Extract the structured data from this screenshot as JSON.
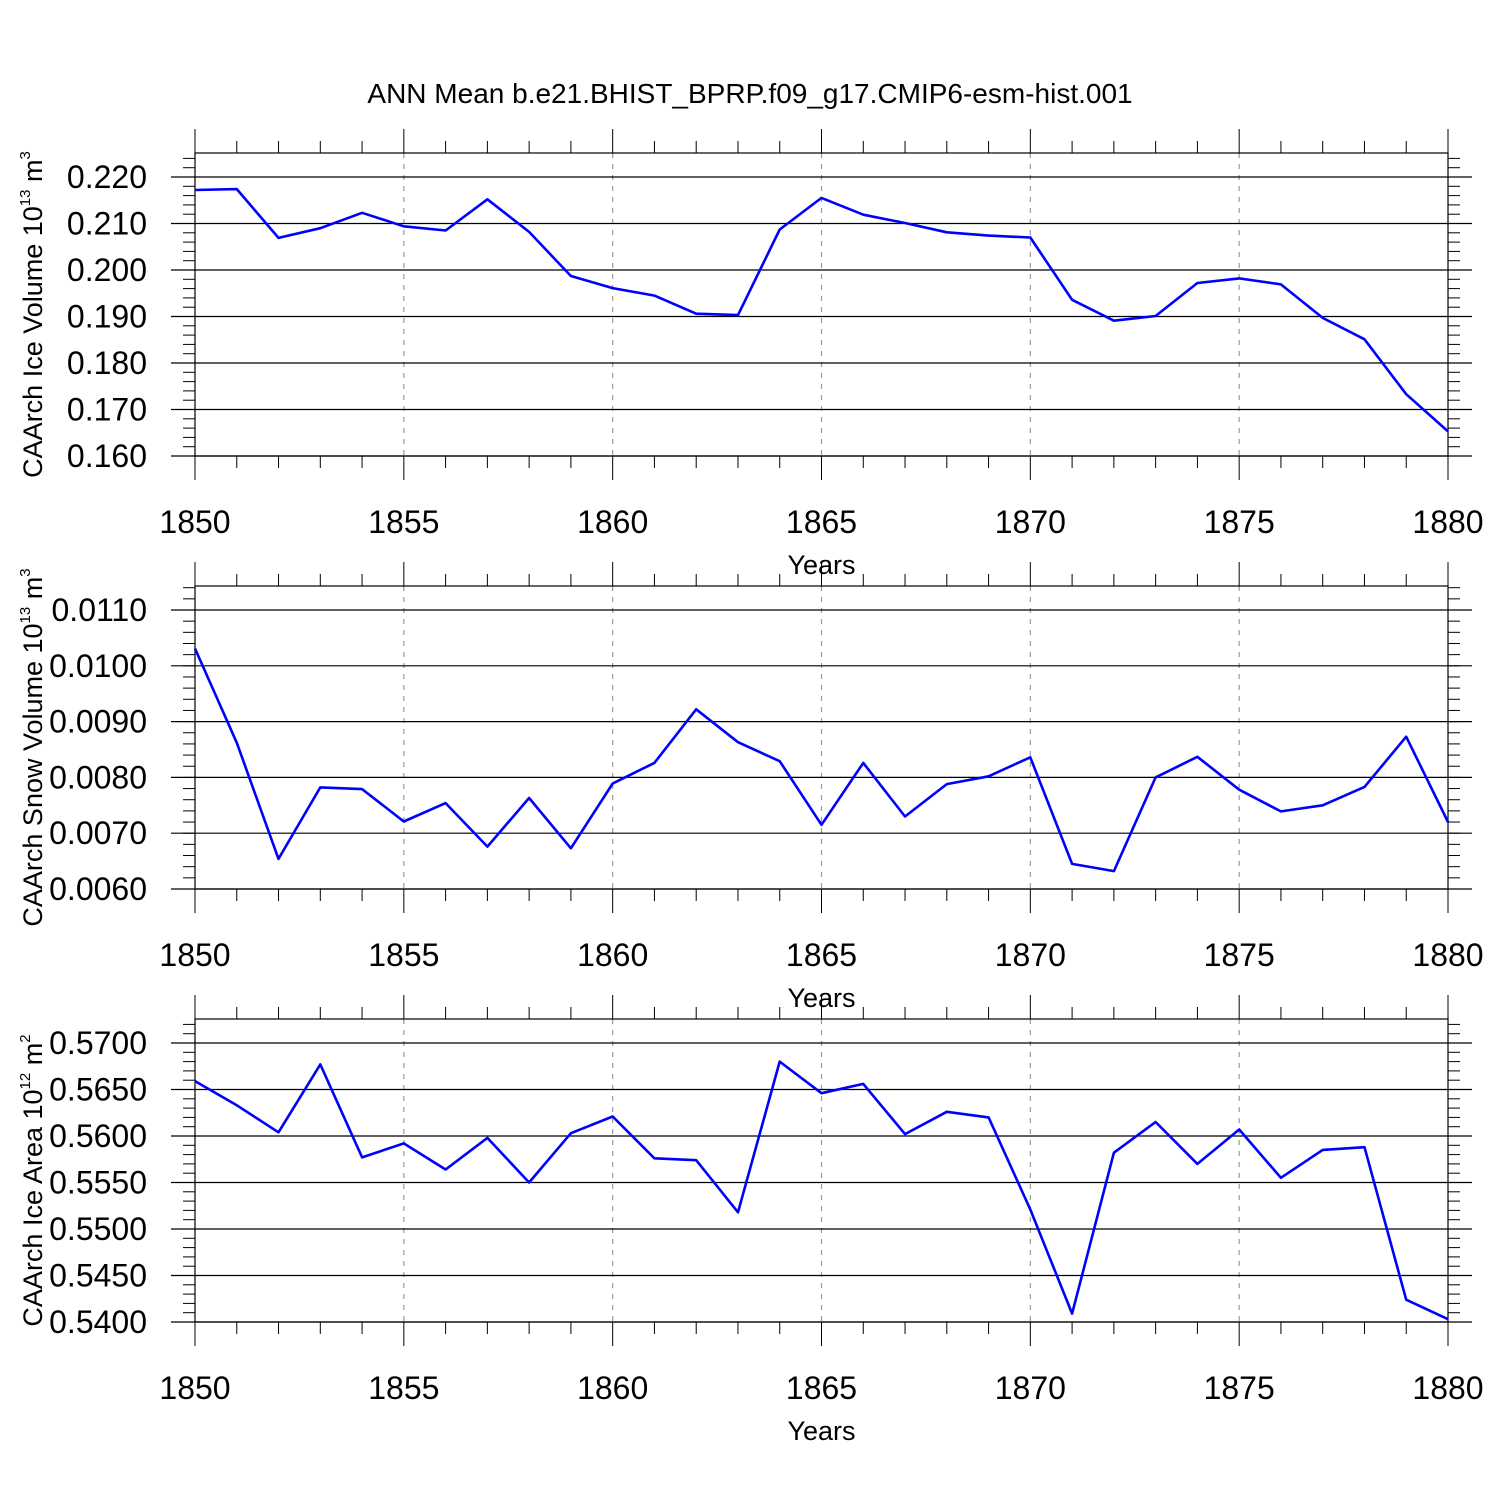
{
  "title": "ANN Mean b.e21.BHIST_BPRP.f09_g17.CMIP6-esm-hist.001",
  "colors": {
    "line": "#0000ff",
    "grid": "#999999",
    "axis": "#000000"
  },
  "chart_data": [
    {
      "type": "line",
      "ylabel_main": "CAArch Ice Volume 10",
      "ylabel_exp": "13",
      "ylabel_unit": " m",
      "ylabel_unit_exp": "3",
      "xlabel": "Years",
      "xlim": [
        1850,
        1880
      ],
      "ylim": [
        0.16,
        0.22
      ],
      "x_ticks": [
        1850,
        1855,
        1860,
        1865,
        1870,
        1875,
        1880
      ],
      "x_tick_labels": [
        "1850",
        "1855",
        "1860",
        "1865",
        "1870",
        "1875",
        "1880"
      ],
      "y_ticks": [
        0.16,
        0.17,
        0.18,
        0.19,
        0.2,
        0.21,
        0.22
      ],
      "y_tick_labels": [
        "0.160",
        "0.170",
        "0.180",
        "0.190",
        "0.200",
        "0.210",
        "0.220"
      ],
      "y_minor_step": 0.002,
      "grid": "vertical dashed at major x ticks",
      "x": [
        1850,
        1851,
        1852,
        1853,
        1854,
        1855,
        1856,
        1857,
        1858,
        1859,
        1860,
        1861,
        1862,
        1863,
        1864,
        1865,
        1866,
        1867,
        1868,
        1869,
        1870,
        1871,
        1872,
        1873,
        1874,
        1875,
        1876,
        1877,
        1878,
        1879,
        1880
      ],
      "values": [
        0.2172,
        0.2174,
        0.2069,
        0.209,
        0.2123,
        0.2094,
        0.2085,
        0.2152,
        0.2082,
        0.1987,
        0.1961,
        0.1945,
        0.1906,
        0.1903,
        0.2087,
        0.2155,
        0.2119,
        0.2101,
        0.2081,
        0.2074,
        0.207,
        0.1936,
        0.1891,
        0.1901,
        0.1972,
        0.1982,
        0.1969,
        0.1897,
        0.1851,
        0.1733,
        0.1653
      ]
    },
    {
      "type": "line",
      "ylabel_main": "CAArch Snow Volume 10",
      "ylabel_exp": "13",
      "ylabel_unit": " m",
      "ylabel_unit_exp": "3",
      "xlabel": "Years",
      "xlim": [
        1850,
        1880
      ],
      "ylim": [
        0.006,
        0.011
      ],
      "x_ticks": [
        1850,
        1855,
        1860,
        1865,
        1870,
        1875,
        1880
      ],
      "x_tick_labels": [
        "1850",
        "1855",
        "1860",
        "1865",
        "1870",
        "1875",
        "1880"
      ],
      "y_ticks": [
        0.006,
        0.007,
        0.008,
        0.009,
        0.01,
        0.011
      ],
      "y_tick_labels": [
        "0.0060",
        "0.0070",
        "0.0080",
        "0.0090",
        "0.0100",
        "0.0110"
      ],
      "y_minor_step": 0.0002,
      "grid": "vertical dashed at major x ticks",
      "x": [
        1850,
        1851,
        1852,
        1853,
        1854,
        1855,
        1856,
        1857,
        1858,
        1859,
        1860,
        1861,
        1862,
        1863,
        1864,
        1865,
        1866,
        1867,
        1868,
        1869,
        1870,
        1871,
        1872,
        1873,
        1874,
        1875,
        1876,
        1877,
        1878,
        1879,
        1880
      ],
      "values": [
        0.01031,
        0.00862,
        0.00654,
        0.00782,
        0.00779,
        0.00721,
        0.00754,
        0.00676,
        0.00763,
        0.00673,
        0.00789,
        0.00826,
        0.00922,
        0.00863,
        0.00829,
        0.00715,
        0.00826,
        0.0073,
        0.00788,
        0.00802,
        0.00836,
        0.00645,
        0.00632,
        0.008,
        0.00837,
        0.00778,
        0.00739,
        0.0075,
        0.00783,
        0.00873,
        0.0072
      ]
    },
    {
      "type": "line",
      "ylabel_main": "CAArch Ice Area 10",
      "ylabel_exp": "12",
      "ylabel_unit": " m",
      "ylabel_unit_exp": "2",
      "xlabel": "Years",
      "xlim": [
        1850,
        1880
      ],
      "ylim": [
        0.54,
        0.57
      ],
      "x_ticks": [
        1850,
        1855,
        1860,
        1865,
        1870,
        1875,
        1880
      ],
      "x_tick_labels": [
        "1850",
        "1855",
        "1860",
        "1865",
        "1870",
        "1875",
        "1880"
      ],
      "y_ticks": [
        0.54,
        0.545,
        0.55,
        0.555,
        0.56,
        0.565,
        0.57
      ],
      "y_tick_labels": [
        "0.5400",
        "0.5450",
        "0.5500",
        "0.5550",
        "0.5600",
        "0.5650",
        "0.5700"
      ],
      "y_minor_step": 0.001,
      "grid": "vertical dashed at major x ticks",
      "x": [
        1850,
        1851,
        1852,
        1853,
        1854,
        1855,
        1856,
        1857,
        1858,
        1859,
        1860,
        1861,
        1862,
        1863,
        1864,
        1865,
        1866,
        1867,
        1868,
        1869,
        1870,
        1871,
        1872,
        1873,
        1874,
        1875,
        1876,
        1877,
        1878,
        1879,
        1880
      ],
      "values": [
        0.5659,
        0.5633,
        0.5604,
        0.5677,
        0.5577,
        0.5592,
        0.5564,
        0.5598,
        0.555,
        0.5603,
        0.5621,
        0.5576,
        0.5574,
        0.5518,
        0.568,
        0.5646,
        0.5656,
        0.5602,
        0.5626,
        0.562,
        0.5521,
        0.5409,
        0.5582,
        0.5615,
        0.557,
        0.5607,
        0.5555,
        0.5585,
        0.5588,
        0.5424,
        0.5403
      ]
    }
  ]
}
